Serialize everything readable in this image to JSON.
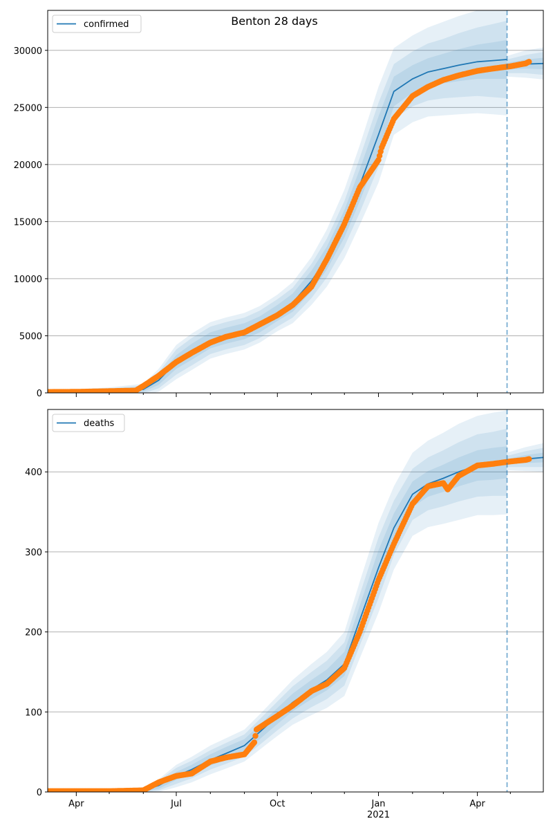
{
  "title": "Benton 28 days",
  "colors": {
    "model": "#1f77b4",
    "observed": "#ff7f0e",
    "band": "#1f77b4",
    "grid": "#b0b0b0"
  },
  "x_axis": {
    "range": [
      "2020-03-06",
      "2021-05-31"
    ],
    "ticks": [
      {
        "date": "2020-04-01",
        "label": "Apr"
      },
      {
        "date": "2020-07-01",
        "label": "Jul"
      },
      {
        "date": "2020-10-01",
        "label": "Oct"
      },
      {
        "date": "2021-01-01",
        "label": "Jan"
      },
      {
        "date": "2021-04-01",
        "label": "Apr"
      }
    ],
    "year_label": "2021",
    "minor_tick_dates": [
      "2020-05-01",
      "2020-06-01",
      "2020-08-01",
      "2020-09-01",
      "2020-11-01",
      "2020-12-01",
      "2021-02-01",
      "2021-03-01",
      "2021-05-01"
    ],
    "forecast_line_date": "2021-04-28"
  },
  "chart_data": [
    {
      "type": "line",
      "legend": "confirmed",
      "legend_position": "top-left",
      "ylim": [
        0,
        33500
      ],
      "yticks": [
        0,
        5000,
        10000,
        15000,
        20000,
        25000,
        30000
      ],
      "grid": "horizontal",
      "model": {
        "name": "confirmed",
        "dates": [
          "2020-03-06",
          "2020-04-01",
          "2020-05-01",
          "2020-06-01",
          "2020-06-15",
          "2020-07-01",
          "2020-07-15",
          "2020-08-01",
          "2020-08-15",
          "2020-09-01",
          "2020-09-15",
          "2020-10-01",
          "2020-10-15",
          "2020-11-01",
          "2020-11-15",
          "2020-12-01",
          "2020-12-15",
          "2021-01-01",
          "2021-01-15",
          "2021-02-01",
          "2021-02-15",
          "2021-03-01",
          "2021-03-15",
          "2021-04-01",
          "2021-04-15",
          "2021-04-28"
        ],
        "values": [
          100,
          120,
          180,
          300,
          1100,
          2700,
          3600,
          4600,
          5000,
          5400,
          6000,
          7000,
          7900,
          9800,
          11800,
          14800,
          18200,
          22600,
          26400,
          27500,
          28100,
          28400,
          28700,
          29000,
          29100,
          29200
        ],
        "band_half_widths": [
          [
            60,
            80,
            120,
            200,
            400,
            600,
            700,
            700,
            700,
            700,
            700,
            700,
            800,
            900,
            1000,
            1200,
            1400,
            1600,
            1300,
            1200,
            1200,
            1300,
            1400,
            1500,
            1600,
            1700
          ],
          [
            100,
            140,
            200,
            350,
            700,
            1100,
            1200,
            1200,
            1200,
            1200,
            1200,
            1200,
            1300,
            1500,
            1700,
            2000,
            2400,
            2800,
            2400,
            2400,
            2500,
            2600,
            2800,
            3000,
            3200,
            3400
          ],
          [
            150,
            200,
            300,
            500,
            1000,
            1500,
            1600,
            1600,
            1600,
            1600,
            1600,
            1600,
            1800,
            2100,
            2500,
            3000,
            3500,
            4200,
            3800,
            3800,
            3900,
            4100,
            4300,
            4500,
            4700,
            4900
          ]
        ]
      },
      "forecast": {
        "dates": [
          "2021-04-28",
          "2021-05-15",
          "2021-05-31"
        ],
        "values": [
          28600,
          28800,
          28850
        ],
        "band_half_widths": [
          [
            300,
            400,
            500
          ],
          [
            600,
            800,
            1000
          ],
          [
            900,
            1200,
            1400
          ]
        ]
      },
      "observed": {
        "name": "confirmed",
        "dates": [
          "2020-03-06",
          "2020-04-01",
          "2020-05-01",
          "2020-05-25",
          "2020-06-01",
          "2020-06-15",
          "2020-07-01",
          "2020-07-15",
          "2020-08-01",
          "2020-08-15",
          "2020-09-01",
          "2020-09-15",
          "2020-10-01",
          "2020-10-15",
          "2020-11-01",
          "2020-11-15",
          "2020-12-01",
          "2020-12-15",
          "2021-01-01",
          "2021-01-04",
          "2021-01-15",
          "2021-02-01",
          "2021-02-15",
          "2021-03-01",
          "2021-03-15",
          "2021-04-01",
          "2021-04-15",
          "2021-05-01",
          "2021-05-15",
          "2021-05-18"
        ],
        "values": [
          80,
          90,
          150,
          200,
          600,
          1500,
          2700,
          3500,
          4400,
          4900,
          5300,
          6000,
          6800,
          7700,
          9300,
          11700,
          14800,
          18000,
          20400,
          21500,
          24000,
          26000,
          26800,
          27400,
          27800,
          28200,
          28400,
          28600,
          28850,
          29000
        ]
      }
    },
    {
      "type": "line",
      "legend": "deaths",
      "legend_position": "top-left",
      "ylim": [
        0,
        478
      ],
      "yticks": [
        0,
        100,
        200,
        300,
        400
      ],
      "grid": "horizontal",
      "model": {
        "name": "deaths",
        "dates": [
          "2020-03-06",
          "2020-04-01",
          "2020-05-01",
          "2020-06-01",
          "2020-06-15",
          "2020-07-01",
          "2020-07-15",
          "2020-08-01",
          "2020-08-15",
          "2020-09-01",
          "2020-09-15",
          "2020-10-01",
          "2020-10-15",
          "2020-11-01",
          "2020-11-15",
          "2020-12-01",
          "2020-12-15",
          "2021-01-01",
          "2021-01-15",
          "2021-02-01",
          "2021-02-15",
          "2021-03-01",
          "2021-03-15",
          "2021-04-01",
          "2021-04-15",
          "2021-04-28"
        ],
        "values": [
          1,
          1,
          1,
          2,
          8,
          20,
          28,
          40,
          48,
          58,
          75,
          95,
          112,
          128,
          140,
          160,
          215,
          280,
          330,
          372,
          385,
          392,
          400,
          408,
          410,
          412
        ],
        "band_half_widths": [
          [
            1,
            1,
            1,
            2,
            4,
            5,
            6,
            7,
            8,
            8,
            9,
            10,
            11,
            12,
            13,
            15,
            18,
            22,
            18,
            16,
            16,
            17,
            18,
            19,
            20,
            20
          ],
          [
            1,
            1,
            2,
            3,
            6,
            10,
            11,
            12,
            13,
            14,
            16,
            18,
            20,
            22,
            24,
            27,
            32,
            38,
            34,
            32,
            33,
            35,
            37,
            39,
            40,
            42
          ],
          [
            1,
            2,
            2,
            4,
            8,
            14,
            16,
            18,
            19,
            20,
            22,
            25,
            28,
            32,
            35,
            40,
            48,
            56,
            52,
            52,
            54,
            57,
            60,
            62,
            64,
            65
          ]
        ]
      },
      "forecast": {
        "dates": [
          "2021-04-28",
          "2021-05-15",
          "2021-05-31"
        ],
        "values": [
          413,
          416,
          418
        ],
        "band_half_widths": [
          [
            3,
            5,
            6
          ],
          [
            7,
            10,
            12
          ],
          [
            11,
            15,
            18
          ]
        ]
      },
      "observed": {
        "name": "deaths",
        "dates": [
          "2020-03-06",
          "2020-04-01",
          "2020-05-01",
          "2020-06-01",
          "2020-06-15",
          "2020-07-01",
          "2020-07-15",
          "2020-08-01",
          "2020-08-15",
          "2020-09-01",
          "2020-09-10",
          "2020-09-12",
          "2020-10-01",
          "2020-10-15",
          "2020-11-01",
          "2020-11-15",
          "2020-12-01",
          "2020-12-15",
          "2021-01-01",
          "2021-01-15",
          "2021-02-01",
          "2021-02-15",
          "2021-03-01",
          "2021-03-05",
          "2021-03-15",
          "2021-04-01",
          "2021-04-15",
          "2021-05-01",
          "2021-05-15",
          "2021-05-18"
        ],
        "values": [
          1,
          1,
          1,
          2,
          12,
          20,
          23,
          38,
          43,
          47,
          62,
          78,
          95,
          108,
          126,
          135,
          155,
          200,
          265,
          310,
          360,
          382,
          386,
          378,
          395,
          408,
          410,
          413,
          415,
          416
        ]
      }
    }
  ]
}
